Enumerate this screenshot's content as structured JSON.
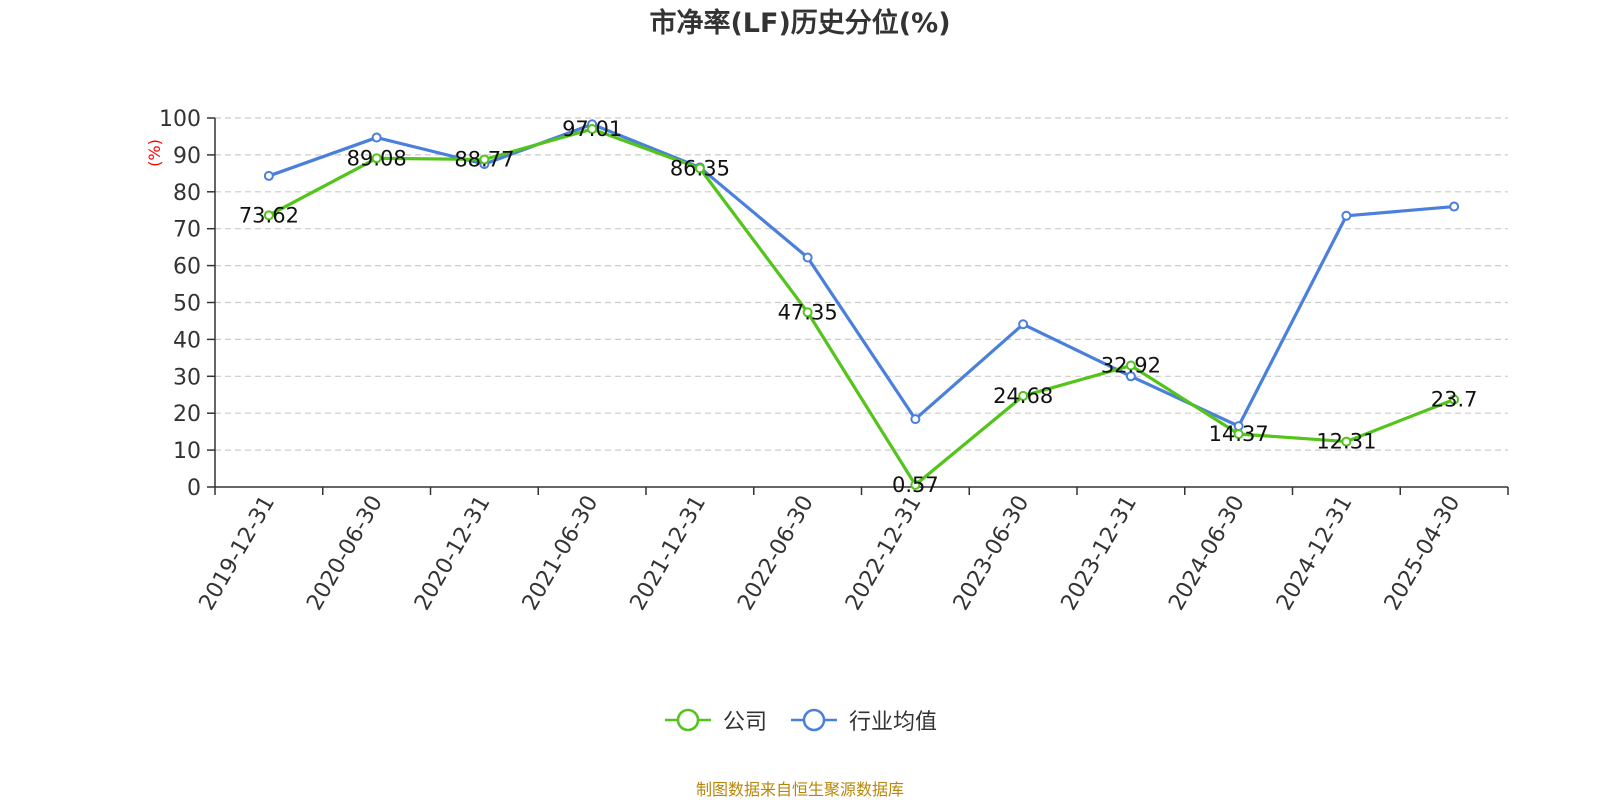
{
  "chart_data": {
    "type": "line",
    "title": "市净率(LF)历史分位(%)",
    "ylabel": "(%)",
    "xlabel": "",
    "ylim": [
      0,
      100
    ],
    "yticks": [
      0,
      10,
      20,
      30,
      40,
      50,
      60,
      70,
      80,
      90,
      100
    ],
    "grid": true,
    "legend_position": "bottom",
    "categories": [
      "2019-12-31",
      "2020-06-30",
      "2020-12-31",
      "2021-06-30",
      "2021-12-31",
      "2022-06-30",
      "2022-12-31",
      "2023-06-30",
      "2023-12-31",
      "2024-06-30",
      "2024-12-31",
      "2025-04-30"
    ],
    "series": [
      {
        "name": "公司",
        "color": "#52c41a",
        "values": [
          73.62,
          89.08,
          88.77,
          97.01,
          86.35,
          47.35,
          0.57,
          24.68,
          32.92,
          14.37,
          12.31,
          23.7
        ],
        "labels": [
          "73.62",
          "89.08",
          "88.77",
          "97.01",
          "86.35",
          "47.35",
          "0.57",
          "24.68",
          "32.92",
          "14.37",
          "12.31",
          "23.7"
        ]
      },
      {
        "name": "行业均值",
        "color": "#4a7fdc",
        "values": [
          84.3,
          94.7,
          87.5,
          98.3,
          86.6,
          62.2,
          18.4,
          44.1,
          30.0,
          16.5,
          73.5,
          76.0
        ]
      }
    ]
  },
  "source_note": "制图数据来自恒生聚源数据库"
}
